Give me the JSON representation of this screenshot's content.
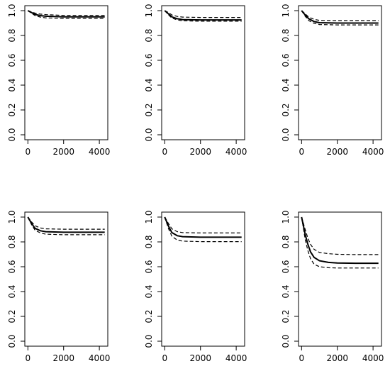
{
  "chart_data": [
    {
      "type": "line",
      "xlim": [
        0,
        4300
      ],
      "ylim": [
        0,
        1
      ],
      "xticks": [
        0,
        2000,
        4000
      ],
      "yticks": [
        0.0,
        0.2,
        0.4,
        0.6,
        0.8,
        1.0
      ],
      "xtick_labels": [
        "0",
        "2000",
        "4000"
      ],
      "ytick_labels": [
        "0.0",
        "0.2",
        "0.4",
        "0.6",
        "0.8",
        "1.0"
      ],
      "series": [
        {
          "style": "solid",
          "x": [
            0,
            200,
            400,
            700,
            1000,
            2000,
            3000,
            4300
          ],
          "y": [
            1.0,
            0.985,
            0.97,
            0.96,
            0.955,
            0.95,
            0.95,
            0.95
          ]
        },
        {
          "style": "dashed",
          "x": [
            0,
            200,
            400,
            700,
            1000,
            2000,
            3000,
            4300
          ],
          "y": [
            1.0,
            0.99,
            0.98,
            0.972,
            0.968,
            0.962,
            0.962,
            0.962
          ]
        },
        {
          "style": "dashed",
          "x": [
            0,
            200,
            400,
            700,
            1000,
            2000,
            3000,
            4300
          ],
          "y": [
            1.0,
            0.98,
            0.96,
            0.948,
            0.942,
            0.938,
            0.938,
            0.938
          ]
        }
      ]
    },
    {
      "type": "line",
      "xlim": [
        0,
        4300
      ],
      "ylim": [
        0,
        1
      ],
      "xticks": [
        0,
        2000,
        4000
      ],
      "yticks": [
        0.0,
        0.2,
        0.4,
        0.6,
        0.8,
        1.0
      ],
      "xtick_labels": [
        "0",
        "2000",
        "4000"
      ],
      "ytick_labels": [
        "0.0",
        "0.2",
        "0.4",
        "0.6",
        "0.8",
        "1.0"
      ],
      "series": [
        {
          "style": "solid",
          "x": [
            0,
            200,
            400,
            700,
            1000,
            2000,
            3000,
            4300
          ],
          "y": [
            1.0,
            0.975,
            0.95,
            0.935,
            0.928,
            0.925,
            0.925,
            0.925
          ]
        },
        {
          "style": "dashed",
          "x": [
            0,
            200,
            400,
            700,
            1000,
            2000,
            3000,
            4300
          ],
          "y": [
            1.0,
            0.985,
            0.965,
            0.953,
            0.948,
            0.945,
            0.945,
            0.945
          ]
        },
        {
          "style": "dashed",
          "x": [
            0,
            200,
            400,
            700,
            1000,
            2000,
            3000,
            4300
          ],
          "y": [
            1.0,
            0.968,
            0.94,
            0.925,
            0.918,
            0.915,
            0.915,
            0.915
          ]
        }
      ]
    },
    {
      "type": "line",
      "xlim": [
        0,
        4300
      ],
      "ylim": [
        0,
        1
      ],
      "xticks": [
        0,
        2000,
        4000
      ],
      "yticks": [
        0.0,
        0.2,
        0.4,
        0.6,
        0.8,
        1.0
      ],
      "xtick_labels": [
        "0",
        "2000",
        "4000"
      ],
      "ytick_labels": [
        "0.0",
        "0.2",
        "0.4",
        "0.6",
        "0.8",
        "1.0"
      ],
      "series": [
        {
          "style": "solid",
          "x": [
            0,
            200,
            400,
            700,
            1000,
            2000,
            3000,
            4300
          ],
          "y": [
            1.0,
            0.965,
            0.935,
            0.912,
            0.903,
            0.9,
            0.9,
            0.9
          ]
        },
        {
          "style": "dashed",
          "x": [
            0,
            200,
            400,
            700,
            1000,
            2000,
            3000,
            4300
          ],
          "y": [
            1.0,
            0.975,
            0.948,
            0.93,
            0.922,
            0.92,
            0.92,
            0.92
          ]
        },
        {
          "style": "dashed",
          "x": [
            0,
            200,
            400,
            700,
            1000,
            2000,
            3000,
            4300
          ],
          "y": [
            1.0,
            0.955,
            0.92,
            0.898,
            0.888,
            0.885,
            0.885,
            0.885
          ]
        }
      ]
    },
    {
      "type": "line",
      "xlim": [
        0,
        4300
      ],
      "ylim": [
        0,
        1
      ],
      "xticks": [
        0,
        2000,
        4000
      ],
      "yticks": [
        0.0,
        0.2,
        0.4,
        0.6,
        0.8,
        1.0
      ],
      "xtick_labels": [
        "0",
        "2000",
        "4000"
      ],
      "ytick_labels": [
        "0.0",
        "0.2",
        "0.4",
        "0.6",
        "0.8",
        "1.0"
      ],
      "series": [
        {
          "style": "solid",
          "x": [
            0,
            200,
            400,
            700,
            1000,
            2000,
            3000,
            4300
          ],
          "y": [
            1.0,
            0.95,
            0.91,
            0.89,
            0.882,
            0.878,
            0.878,
            0.878
          ]
        },
        {
          "style": "dashed",
          "x": [
            0,
            200,
            400,
            700,
            1000,
            2000,
            3000,
            4300
          ],
          "y": [
            1.0,
            0.962,
            0.93,
            0.912,
            0.905,
            0.902,
            0.902,
            0.902
          ]
        },
        {
          "style": "dashed",
          "x": [
            0,
            200,
            400,
            700,
            1000,
            2000,
            3000,
            4300
          ],
          "y": [
            1.0,
            0.94,
            0.895,
            0.872,
            0.862,
            0.858,
            0.858,
            0.858
          ]
        }
      ]
    },
    {
      "type": "line",
      "xlim": [
        0,
        4300
      ],
      "ylim": [
        0,
        1
      ],
      "xticks": [
        0,
        2000,
        4000
      ],
      "yticks": [
        0.0,
        0.2,
        0.4,
        0.6,
        0.8,
        1.0
      ],
      "xtick_labels": [
        "0",
        "2000",
        "4000"
      ],
      "ytick_labels": [
        "0.0",
        "0.2",
        "0.4",
        "0.6",
        "0.8",
        "1.0"
      ],
      "series": [
        {
          "style": "solid",
          "x": [
            0,
            200,
            400,
            700,
            1000,
            2000,
            3000,
            4300
          ],
          "y": [
            1.0,
            0.93,
            0.875,
            0.85,
            0.842,
            0.838,
            0.838,
            0.838
          ]
        },
        {
          "style": "dashed",
          "x": [
            0,
            200,
            400,
            700,
            1000,
            2000,
            3000,
            4300
          ],
          "y": [
            1.0,
            0.95,
            0.905,
            0.882,
            0.875,
            0.872,
            0.872,
            0.872
          ]
        },
        {
          "style": "dashed",
          "x": [
            0,
            200,
            400,
            700,
            1000,
            2000,
            3000,
            4300
          ],
          "y": [
            1.0,
            0.91,
            0.845,
            0.815,
            0.806,
            0.802,
            0.802,
            0.802
          ]
        }
      ]
    },
    {
      "type": "line",
      "xlim": [
        0,
        4300
      ],
      "ylim": [
        0,
        1
      ],
      "xticks": [
        0,
        2000,
        4000
      ],
      "yticks": [
        0.0,
        0.2,
        0.4,
        0.6,
        0.8,
        1.0
      ],
      "xtick_labels": [
        "0",
        "2000",
        "4000"
      ],
      "ytick_labels": [
        "0.0",
        "0.2",
        "0.4",
        "0.6",
        "0.8",
        "1.0"
      ],
      "series": [
        {
          "style": "solid",
          "x": [
            0,
            100,
            200,
            350,
            500,
            700,
            1000,
            1500,
            2000,
            3000,
            4300
          ],
          "y": [
            1.0,
            0.93,
            0.86,
            0.78,
            0.72,
            0.675,
            0.648,
            0.635,
            0.63,
            0.628,
            0.628
          ]
        },
        {
          "style": "dashed",
          "x": [
            0,
            100,
            200,
            350,
            500,
            700,
            1000,
            1500,
            2000,
            3000,
            4300
          ],
          "y": [
            1.0,
            0.95,
            0.9,
            0.83,
            0.78,
            0.74,
            0.715,
            0.705,
            0.7,
            0.698,
            0.698
          ]
        },
        {
          "style": "dashed",
          "x": [
            0,
            100,
            200,
            350,
            500,
            700,
            1000,
            1500,
            2000,
            3000,
            4300
          ],
          "y": [
            1.0,
            0.91,
            0.82,
            0.73,
            0.665,
            0.62,
            0.6,
            0.592,
            0.59,
            0.59,
            0.59
          ]
        }
      ]
    }
  ]
}
